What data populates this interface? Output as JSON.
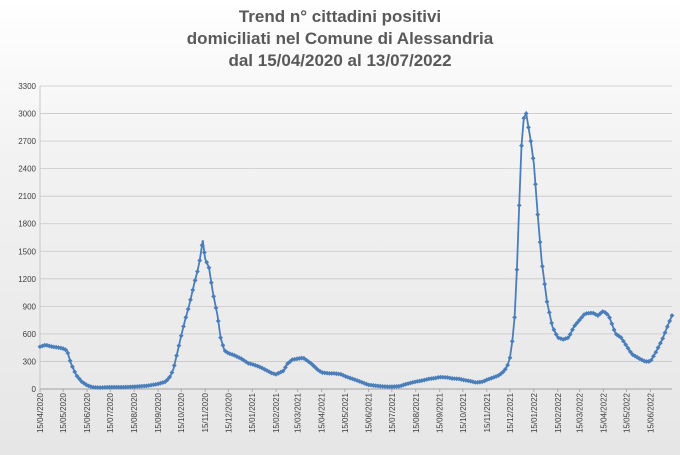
{
  "chart_data": {
    "type": "line",
    "title_lines": [
      "Trend n° cittadini positivi",
      "domiciliati nel Comune di Alessandria",
      "dal 15/04/2020 al 13/07/2022"
    ],
    "xlabel": "",
    "ylabel": "",
    "ylim": [
      0,
      3300
    ],
    "y_ticks": [
      0,
      300,
      600,
      900,
      1200,
      1500,
      1800,
      2100,
      2400,
      2700,
      3000,
      3300
    ],
    "x_tick_labels": [
      "15/04/2020",
      "15/05/2020",
      "15/06/2020",
      "15/07/2020",
      "15/08/2020",
      "15/09/2020",
      "15/10/2020",
      "15/11/2020",
      "15/12/2020",
      "15/01/2021",
      "15/02/2021",
      "15/03/2021",
      "15/04/2021",
      "15/05/2021",
      "15/06/2021",
      "15/07/2021",
      "15/08/2021",
      "15/09/2021",
      "15/10/2021",
      "15/11/2021",
      "15/12/2021",
      "15/01/2022",
      "15/02/2022",
      "15/03/2022",
      "15/04/2022",
      "15/05/2022",
      "15/06/2022"
    ],
    "grid": true,
    "legend": "none",
    "series_color": "#4a7ebb",
    "series": [
      {
        "x": [
          "2020-04-15",
          "2020-04-22",
          "2020-05-01",
          "2020-05-10",
          "2020-05-15",
          "2020-05-20",
          "2020-05-25",
          "2020-06-01",
          "2020-06-08",
          "2020-06-15",
          "2020-06-22",
          "2020-07-01",
          "2020-07-15",
          "2020-08-01",
          "2020-08-15",
          "2020-09-01",
          "2020-09-15",
          "2020-09-25",
          "2020-10-01",
          "2020-10-05",
          "2020-10-10",
          "2020-10-15",
          "2020-10-20",
          "2020-10-25",
          "2020-11-01",
          "2020-11-05",
          "2020-11-08",
          "2020-11-12",
          "2020-11-15",
          "2020-11-20",
          "2020-11-25",
          "2020-12-01",
          "2020-12-05",
          "2020-12-10",
          "2020-12-15",
          "2020-12-22",
          "2021-01-01",
          "2021-01-10",
          "2021-01-15",
          "2021-01-25",
          "2021-02-01",
          "2021-02-10",
          "2021-02-15",
          "2021-02-25",
          "2021-03-01",
          "2021-03-08",
          "2021-03-15",
          "2021-03-22",
          "2021-04-01",
          "2021-04-10",
          "2021-04-15",
          "2021-04-25",
          "2021-05-01",
          "2021-05-10",
          "2021-05-15",
          "2021-05-25",
          "2021-06-01",
          "2021-06-10",
          "2021-06-15",
          "2021-06-25",
          "2021-07-01",
          "2021-07-10",
          "2021-07-15",
          "2021-07-25",
          "2021-08-01",
          "2021-08-10",
          "2021-08-15",
          "2021-08-25",
          "2021-09-01",
          "2021-09-10",
          "2021-09-15",
          "2021-09-25",
          "2021-10-01",
          "2021-10-10",
          "2021-10-15",
          "2021-10-25",
          "2021-11-01",
          "2021-11-10",
          "2021-11-15",
          "2021-11-25",
          "2021-12-01",
          "2021-12-08",
          "2021-12-12",
          "2021-12-15",
          "2021-12-18",
          "2021-12-21",
          "2021-12-24",
          "2021-12-27",
          "2021-12-30",
          "2022-01-02",
          "2022-01-05",
          "2022-01-08",
          "2022-01-11",
          "2022-01-15",
          "2022-01-20",
          "2022-01-25",
          "2022-02-01",
          "2022-02-08",
          "2022-02-15",
          "2022-02-22",
          "2022-03-01",
          "2022-03-08",
          "2022-03-15",
          "2022-03-22",
          "2022-04-01",
          "2022-04-08",
          "2022-04-15",
          "2022-04-22",
          "2022-05-01",
          "2022-05-08",
          "2022-05-15",
          "2022-05-22",
          "2022-06-01",
          "2022-06-08",
          "2022-06-15",
          "2022-06-22",
          "2022-07-01",
          "2022-07-08",
          "2022-07-13"
        ],
        "y": [
          460,
          480,
          460,
          450,
          440,
          420,
          280,
          150,
          80,
          40,
          20,
          15,
          20,
          20,
          25,
          35,
          55,
          80,
          140,
          220,
          400,
          580,
          750,
          900,
          1150,
          1280,
          1400,
          1620,
          1420,
          1320,
          1050,
          800,
          560,
          420,
          390,
          370,
          330,
          280,
          270,
          240,
          210,
          170,
          160,
          200,
          270,
          320,
          330,
          340,
          280,
          210,
          180,
          170,
          170,
          160,
          140,
          110,
          90,
          60,
          45,
          35,
          30,
          25,
          25,
          30,
          50,
          70,
          80,
          95,
          110,
          120,
          130,
          125,
          115,
          110,
          100,
          85,
          70,
          80,
          100,
          130,
          150,
          200,
          260,
          340,
          520,
          780,
          1300,
          2000,
          2650,
          2950,
          3000,
          2850,
          2700,
          2450,
          1900,
          1400,
          950,
          680,
          560,
          540,
          560,
          680,
          750,
          820,
          830,
          800,
          850,
          800,
          600,
          560,
          470,
          380,
          330,
          300,
          300,
          400,
          550,
          700,
          800
        ]
      }
    ]
  }
}
